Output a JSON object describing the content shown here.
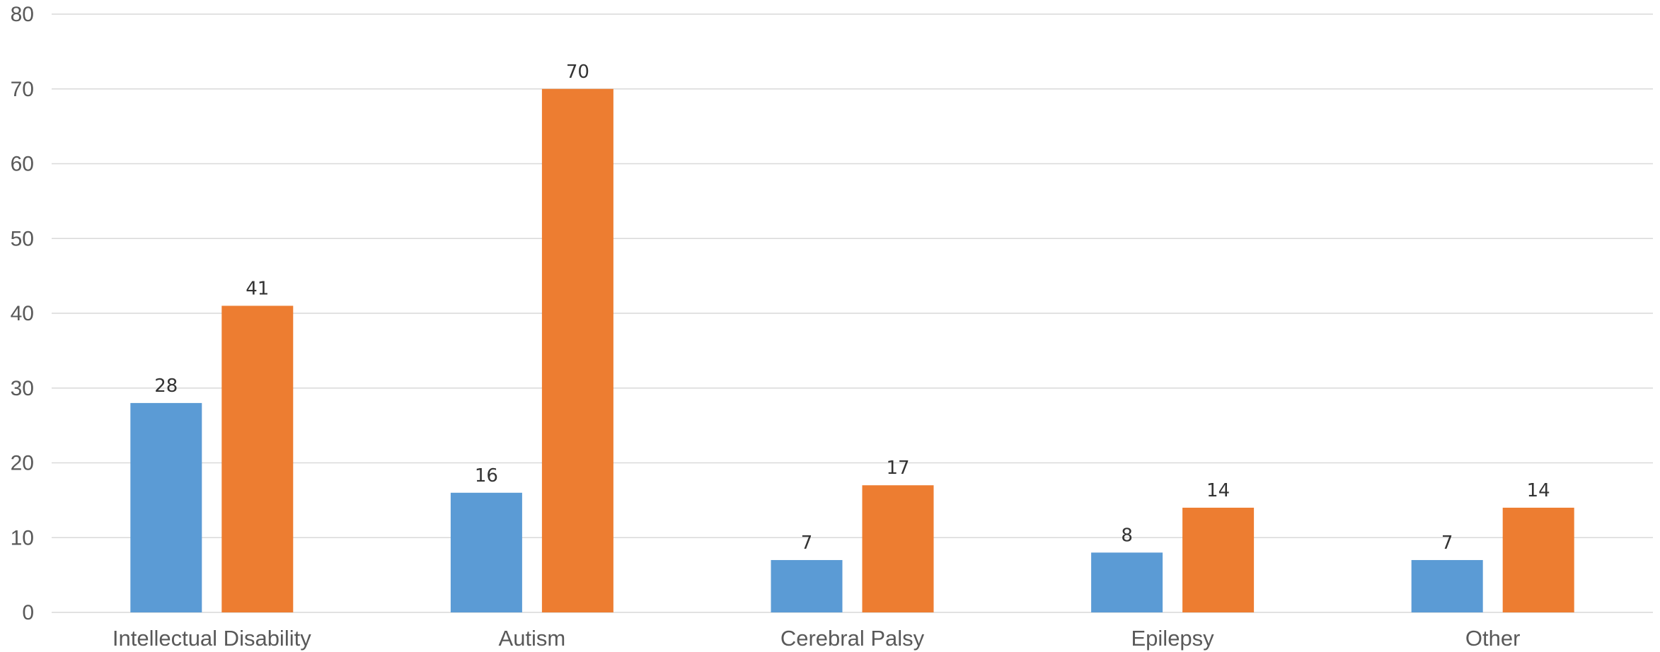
{
  "chart_data": {
    "type": "bar",
    "categories": [
      "Intellectual Disability",
      "Autism",
      "Cerebral Palsy",
      "Epilepsy",
      "Other"
    ],
    "series": [
      {
        "values": [
          28,
          16,
          7,
          8,
          7
        ],
        "color": "#5b9bd5"
      },
      {
        "values": [
          41,
          70,
          17,
          14,
          14
        ],
        "color": "#ed7d31"
      }
    ],
    "ylim": [
      0,
      80
    ],
    "yticks": [
      0,
      10,
      20,
      30,
      40,
      50,
      60,
      70,
      80
    ],
    "grid": true,
    "data_labels": true,
    "legend": "none"
  }
}
